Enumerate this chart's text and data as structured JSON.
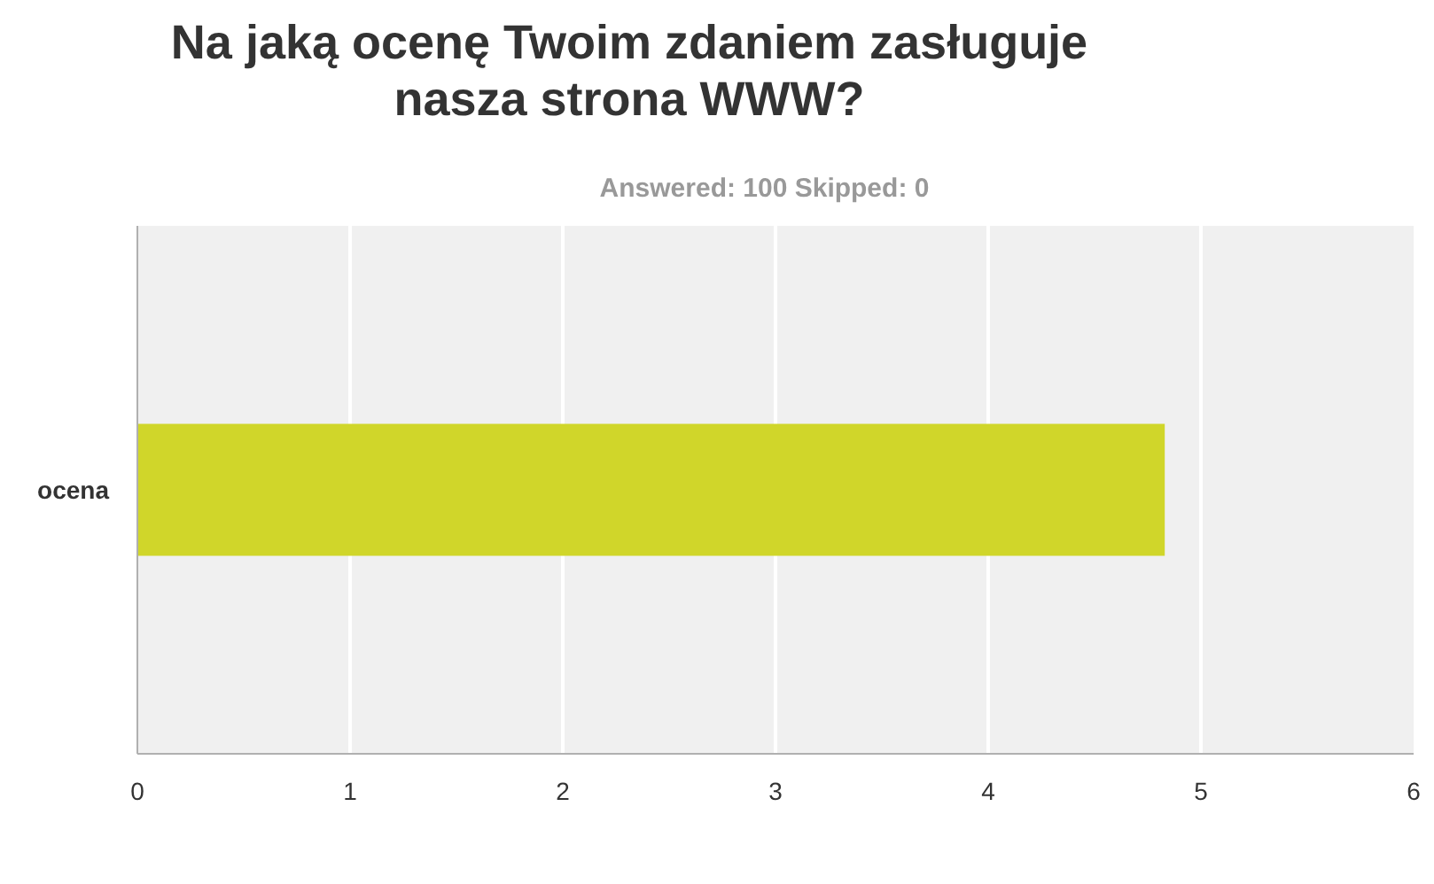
{
  "chart_data": {
    "type": "bar",
    "orientation": "horizontal",
    "title": "Na jaką ocenę Twoim zdaniem zasługuje\nnasza strona WWW?",
    "subtitle": "Answered: 100    Skipped: 0",
    "categories": [
      "ocena"
    ],
    "values": [
      4.83
    ],
    "color": "#d0d62a",
    "xlim": [
      0,
      6
    ],
    "xticks": [
      0,
      1,
      2,
      3,
      4,
      5,
      6
    ],
    "grid": "x"
  }
}
